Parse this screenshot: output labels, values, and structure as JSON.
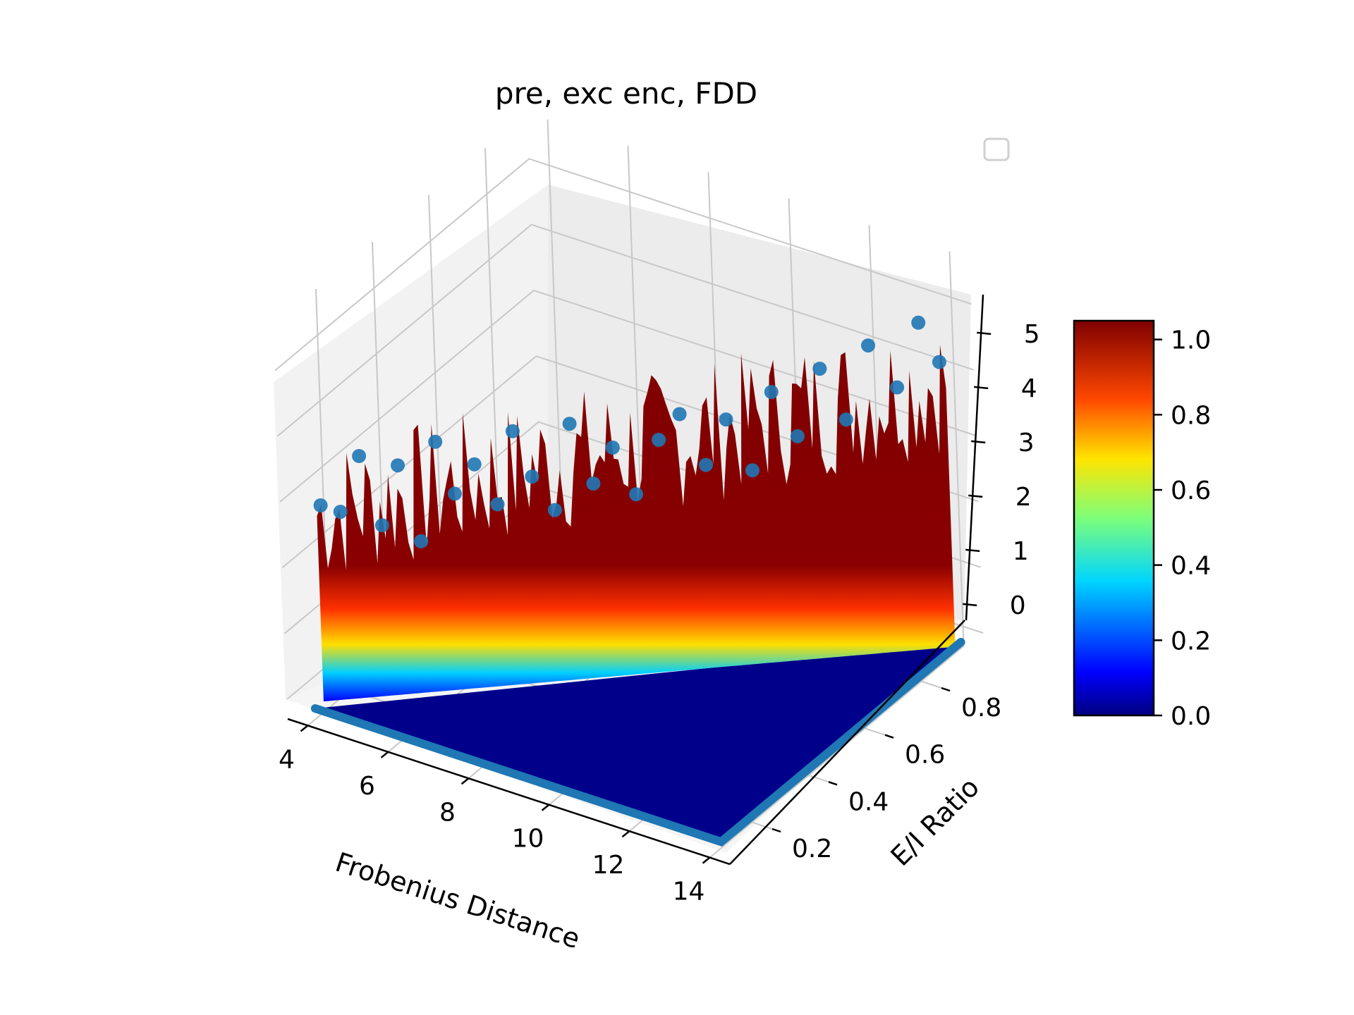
{
  "chart_data": {
    "type": "surface3d",
    "title": "pre, exc enc, FDD",
    "xlabel": "Frobenius Distance",
    "ylabel": "E/I Ratio",
    "zlabel": "",
    "x_ticks": [
      "4",
      "6",
      "8",
      "10",
      "12",
      "14"
    ],
    "y_ticks": [
      "0.2",
      "0.4",
      "0.6",
      "0.8"
    ],
    "z_ticks": [
      "0",
      "1",
      "2",
      "3",
      "4",
      "5"
    ],
    "xlim": [
      3.5,
      14.5
    ],
    "ylim": [
      0.05,
      0.95
    ],
    "zlim": [
      -0.3,
      5.7
    ],
    "colorbar": {
      "colormap": "jet",
      "range": [
        0.0,
        1.05
      ],
      "ticks": [
        "0.0",
        "0.2",
        "0.4",
        "0.6",
        "0.8",
        "1.0"
      ]
    },
    "legend": {
      "placement": "upper-right",
      "entries": []
    },
    "surface": {
      "description_values": "base plane at 0 where E/I Ratio < boundary; values up to ~5 along the boundary ridge",
      "max_z": 5.2
    },
    "scatter": {
      "color": "#1f77b4",
      "points": [
        [
          4.3,
          0.08,
          3.0
        ],
        [
          4.5,
          0.12,
          2.8
        ],
        [
          4.8,
          0.15,
          3.6
        ],
        [
          5.1,
          0.18,
          2.5
        ],
        [
          5.4,
          0.2,
          3.4
        ],
        [
          5.7,
          0.23,
          2.2
        ],
        [
          6.0,
          0.25,
          3.7
        ],
        [
          6.3,
          0.27,
          2.9
        ],
        [
          6.6,
          0.3,
          3.3
        ],
        [
          7.0,
          0.32,
          2.7
        ],
        [
          7.3,
          0.34,
          3.8
        ],
        [
          7.6,
          0.36,
          3.1
        ],
        [
          8.0,
          0.38,
          2.6
        ],
        [
          8.3,
          0.4,
          3.9
        ],
        [
          8.7,
          0.42,
          3.0
        ],
        [
          9.0,
          0.45,
          3.5
        ],
        [
          9.4,
          0.47,
          2.8
        ],
        [
          9.8,
          0.5,
          3.6
        ],
        [
          10.2,
          0.52,
          4.0
        ],
        [
          10.6,
          0.55,
          3.2
        ],
        [
          11.0,
          0.57,
          3.9
        ],
        [
          11.4,
          0.6,
          3.1
        ],
        [
          11.8,
          0.62,
          4.3
        ],
        [
          12.2,
          0.65,
          3.6
        ],
        [
          12.6,
          0.68,
          4.6
        ],
        [
          13.0,
          0.71,
          3.8
        ],
        [
          13.4,
          0.74,
          4.9
        ],
        [
          13.8,
          0.78,
          4.2
        ],
        [
          14.1,
          0.82,
          5.1
        ],
        [
          14.3,
          0.86,
          4.4
        ]
      ]
    }
  }
}
